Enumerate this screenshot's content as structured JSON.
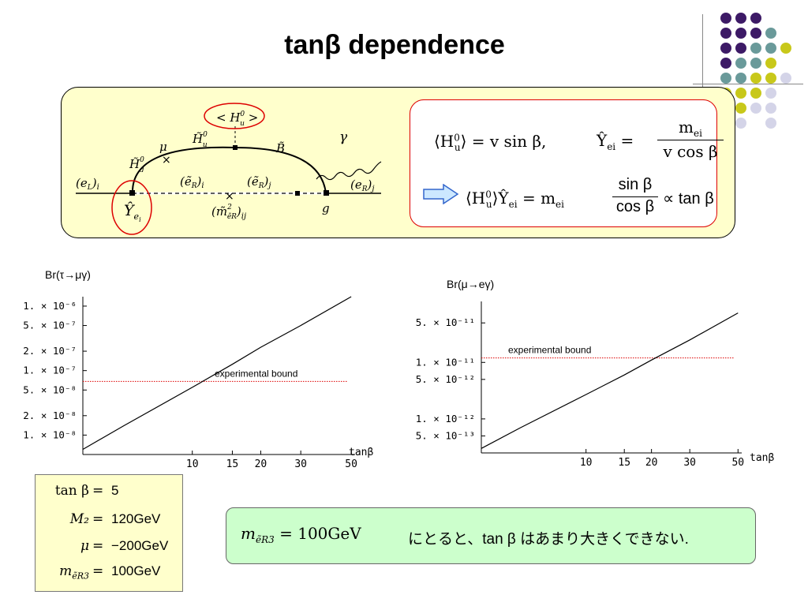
{
  "title": "tanβ dependence",
  "colors": {
    "purple": "#3d1a66",
    "teal": "#6a9a9a",
    "olive": "#c8c81a",
    "lavender": "#d4d4e8",
    "red": "#dd0000",
    "yellow_bg": "#ffffcc",
    "green_bg": "#ccffcc"
  },
  "diagram": {
    "labels": {
      "hu_vev": "< H",
      "hu_vev_sup": "0",
      "hu_vev_sub": "u",
      "hu_vev_close": " >",
      "hu_tilde": "H̃",
      "hu_tilde_sup": "0",
      "hu_tilde_sub": "u",
      "hd_tilde": "H̃",
      "hd_tilde_sup": "0",
      "hd_tilde_sub": "d",
      "mu": "μ",
      "bino": "B̃",
      "gamma": "γ",
      "eL_i": "(e",
      "eL_i_sub": "L",
      "eL_i_close": ")",
      "eL_i_idx": "i",
      "eR_tilde_i": "(ẽ",
      "eR_tilde_i_sub": "R",
      "eR_tilde_i_close": ")",
      "eR_tilde_i_idx": "i",
      "eR_tilde_j": "(ẽ",
      "eR_tilde_j_sub": "R",
      "eR_tilde_j_close": ")",
      "eR_tilde_j_idx": "j",
      "eR_j": "(e",
      "eR_j_sub": "R",
      "eR_j_close": ")",
      "eR_j_idx": "j",
      "mass_insert": "(m̃",
      "mass_insert_sup": "2",
      "mass_insert_sub": "ẽR",
      "mass_insert_close": ")",
      "mass_insert_idx": "ij",
      "yukawa": "Ŷ",
      "yukawa_sub": "e",
      "yukawa_subsub": "i",
      "g": "g"
    },
    "formula1_lhs": "⟨H",
    "formula1_sup": "0",
    "formula1_sub": "u",
    "formula1_rest": "⟩ = v sin β,",
    "formula2_lhs": "Ŷ",
    "formula2_sub": "ei",
    "formula2_eq": " = ",
    "formula2_num": "m",
    "formula2_num_sub": "ei",
    "formula2_den": "v cos β",
    "formula3_lhs": "⟨H",
    "formula3_sup": "0",
    "formula3_sub": "u",
    "formula3_mid": "⟩Ŷ",
    "formula3_sub2": "ei",
    "formula3_eq": " = m",
    "formula3_sub3": "ei",
    "formula3_num": "sin β",
    "formula3_den": "cos β",
    "formula3_tail": "∝ tan β"
  },
  "chart_data": [
    {
      "type": "line",
      "title": "Br(τ→μγ)",
      "xlabel": "tanβ",
      "xscale": "log",
      "yscale": "log",
      "xlim": [
        3.3,
        52
      ],
      "ylim": [
        5e-09,
        1.4e-06
      ],
      "x_ticks": [
        "10",
        "15",
        "20",
        "30",
        "50"
      ],
      "y_ticks": [
        "1. × 10⁻⁶",
        "5. × 10⁻⁷",
        "2. × 10⁻⁷",
        "1. × 10⁻⁷",
        "5. × 10⁻⁸",
        "2. × 10⁻⁸",
        "1. × 10⁻⁸"
      ],
      "x_tick_values": [
        10,
        15,
        20,
        30,
        50
      ],
      "y_tick_values": [
        1e-06,
        5e-07,
        2e-07,
        1e-07,
        5e-08,
        2e-08,
        1e-08
      ],
      "series": [
        {
          "x": [
            3.3,
            5,
            10,
            15,
            20,
            30,
            50
          ],
          "y": [
            6e-09,
            1.4e-08,
            5.5e-08,
            1.25e-07,
            2.3e-07,
            5e-07,
            1.4e-06
          ]
        }
      ],
      "bound": {
        "value": 6.8e-08,
        "label": "experimental bound"
      }
    },
    {
      "type": "line",
      "title": "Br(μ→eγ)",
      "xlabel": "tanβ",
      "xscale": "log",
      "yscale": "log",
      "xlim": [
        3.3,
        52
      ],
      "ylim": [
        2.5e-13,
        1.2e-10
      ],
      "x_ticks": [
        "10",
        "15",
        "20",
        "30",
        "50"
      ],
      "y_ticks": [
        "5. × 10⁻¹¹",
        "1. × 10⁻¹¹",
        "5. × 10⁻¹²",
        "1. × 10⁻¹²",
        "5. × 10⁻¹³"
      ],
      "x_tick_values": [
        10,
        15,
        20,
        30,
        50
      ],
      "y_tick_values": [
        5e-11,
        1e-11,
        5e-12,
        1e-12,
        5e-13
      ],
      "series": [
        {
          "x": [
            3.3,
            5,
            10,
            15,
            20,
            30,
            50
          ],
          "y": [
            3e-13,
            7e-13,
            2.7e-12,
            6e-12,
            1.1e-11,
            2.5e-11,
            7.5e-11
          ]
        }
      ],
      "bound": {
        "value": 1.2e-11,
        "label": "experimental bound"
      }
    }
  ],
  "params": [
    {
      "label": "tan β",
      "value": "5"
    },
    {
      "label": "M₂",
      "value": "120GeV"
    },
    {
      "label": "μ",
      "value": "−200GeV"
    },
    {
      "label": "m",
      "label_sub": "ẽR3",
      "value": "100GeV"
    }
  ],
  "conclusion": {
    "lhs": "m",
    "lhs_sub": "ẽR3",
    "lhs_eq": " = 100GeV",
    "text": "にとると、tan β はあまり大きくできない."
  }
}
